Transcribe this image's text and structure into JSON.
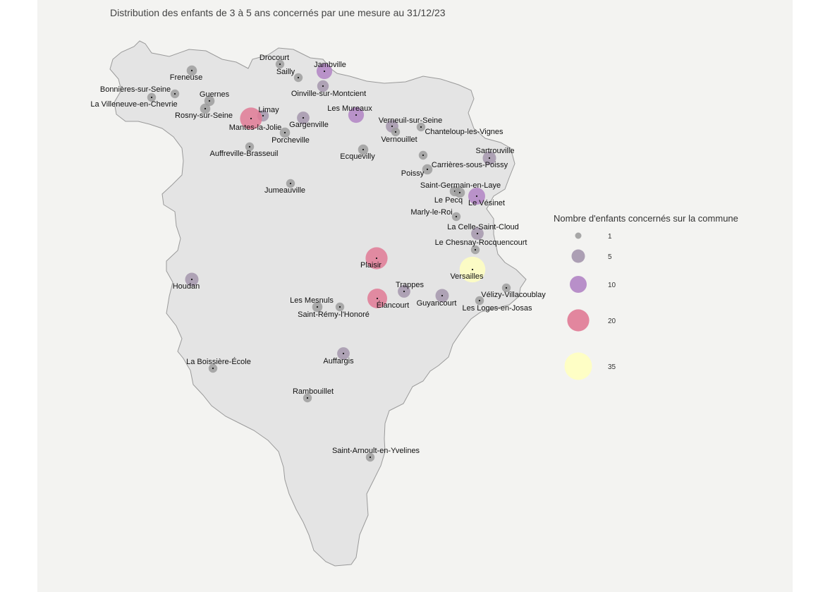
{
  "title": "Distribution des enfants de 3 à 5 ans concernés par une mesure au 31/12/23",
  "legend": {
    "title": "Nombre d'enfants concernés sur la commune",
    "items": [
      {
        "value": "1",
        "color": "#9e9e9e"
      },
      {
        "value": "5",
        "color": "#a496ad"
      },
      {
        "value": "10",
        "color": "#b184c4"
      },
      {
        "value": "20",
        "color": "#e07a95"
      },
      {
        "value": "35",
        "color": "#ffffc0"
      }
    ]
  },
  "communes": [
    {
      "name": "Drocourt",
      "count": 1
    },
    {
      "name": "Sailly",
      "count": 1
    },
    {
      "name": "Jambville",
      "count": 8
    },
    {
      "name": "Freneuse",
      "count": 2
    },
    {
      "name": "Bonnières-sur-Seine",
      "count": 1
    },
    {
      "name": "La Villeneuve-en-Chevrie",
      "count": 1
    },
    {
      "name": "Guernes",
      "count": 2
    },
    {
      "name": "Rosny-sur-Seine",
      "count": 2
    },
    {
      "name": "Oinville-sur-Montcient",
      "count": 3
    },
    {
      "name": "Limay",
      "count": 3
    },
    {
      "name": "Mantes-la-Jolie",
      "count": 20
    },
    {
      "name": "Les Mureaux",
      "count": 8
    },
    {
      "name": "Gargenville",
      "count": 4
    },
    {
      "name": "Porcheville",
      "count": 2
    },
    {
      "name": "Verneuil-sur-Seine",
      "count": 4
    },
    {
      "name": "Vernouillet",
      "count": 1
    },
    {
      "name": "Chanteloup-les-Vignes",
      "count": 1
    },
    {
      "name": "Auffreville-Brasseuil",
      "count": 1
    },
    {
      "name": "Ecquevilly",
      "count": 2
    },
    {
      "name": "Sartrouville",
      "count": 5
    },
    {
      "name": "Carrières-sous-Poissy",
      "count": 1
    },
    {
      "name": "Poissy",
      "count": 2
    },
    {
      "name": "Saint-Germain-en-Laye",
      "count": 2
    },
    {
      "name": "Le Pecq",
      "count": 2
    },
    {
      "name": "Le Vésinet",
      "count": 10
    },
    {
      "name": "Jumeauville",
      "count": 1
    },
    {
      "name": "Marly-le-Roi",
      "count": 1
    },
    {
      "name": "La Celle-Saint-Cloud",
      "count": 4
    },
    {
      "name": "Le Chesnay-Rocquencourt",
      "count": 1
    },
    {
      "name": "Plaisir",
      "count": 20
    },
    {
      "name": "Versailles",
      "count": 30
    },
    {
      "name": "Houdan",
      "count": 5
    },
    {
      "name": "Trappes",
      "count": 4
    },
    {
      "name": "Vélizy-Villacoublay",
      "count": 1
    },
    {
      "name": "Les Mesnuls",
      "count": 2
    },
    {
      "name": "Élancourt",
      "count": 15
    },
    {
      "name": "Guyancourt",
      "count": 5
    },
    {
      "name": "Les Loges-en-Josas",
      "count": 1
    },
    {
      "name": "Saint-Rémy-l'Honoré",
      "count": 1
    },
    {
      "name": "Auffargis",
      "count": 4
    },
    {
      "name": "La Boissière-École",
      "count": 1
    },
    {
      "name": "Rambouillet",
      "count": 1
    },
    {
      "name": "Saint-Arnoult-en-Yvelines",
      "count": 1
    }
  ]
}
